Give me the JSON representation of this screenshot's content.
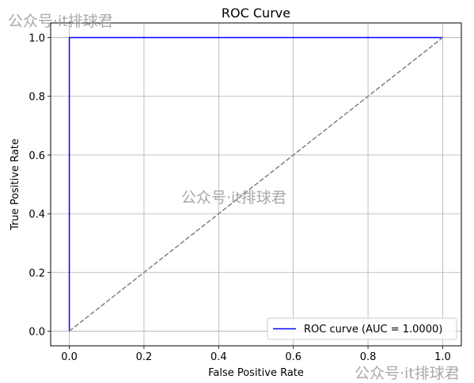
{
  "watermarks": [
    "公众号·it排球君",
    "公众号·it排球君",
    "公众号·it排球君"
  ],
  "chart_data": {
    "type": "line",
    "title": "ROC Curve",
    "xlabel": "False Positive Rate",
    "ylabel": "True Positive Rate",
    "xlim": [
      -0.05,
      1.05
    ],
    "ylim": [
      -0.05,
      1.05
    ],
    "xticks": [
      0.0,
      0.2,
      0.4,
      0.6,
      0.8,
      1.0
    ],
    "yticks": [
      0.0,
      0.2,
      0.4,
      0.6,
      0.8,
      1.0
    ],
    "xtick_labels": [
      "0.0",
      "0.2",
      "0.4",
      "0.6",
      "0.8",
      "1.0"
    ],
    "ytick_labels": [
      "0.0",
      "0.2",
      "0.4",
      "0.6",
      "0.8",
      "1.0"
    ],
    "grid": true,
    "legend_position": "lower-right",
    "series": [
      {
        "name": "ROC curve (AUC = 1.0000)",
        "color": "#0000ff",
        "style": "solid",
        "x": [
          0.0,
          0.0,
          1.0
        ],
        "y": [
          0.0,
          1.0,
          1.0
        ]
      },
      {
        "color": "#808080",
        "style": "dashed",
        "x": [
          0.0,
          1.0
        ],
        "y": [
          0.0,
          1.0
        ]
      }
    ]
  }
}
